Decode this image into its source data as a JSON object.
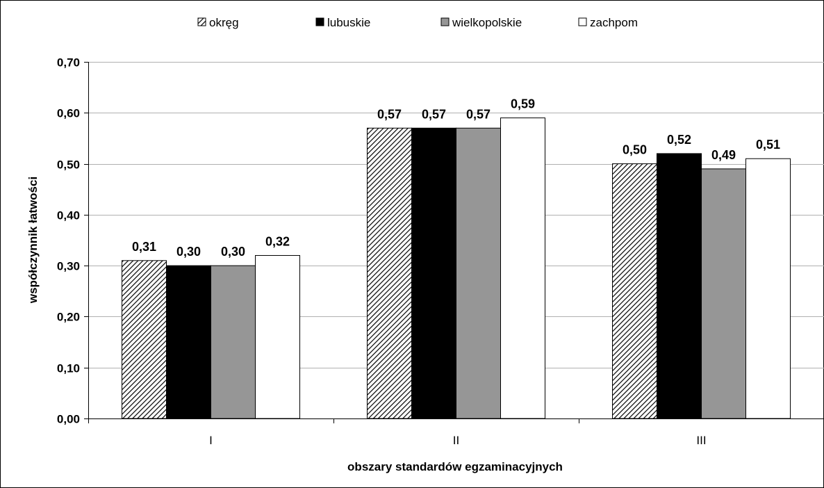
{
  "chart_data": {
    "type": "bar",
    "categories": [
      "I",
      "II",
      "III"
    ],
    "series": [
      {
        "name": "okręg",
        "values": [
          0.31,
          0.57,
          0.5
        ],
        "labels": [
          "0,31",
          "0,57",
          "0,50"
        ],
        "fill": "hatched",
        "color": "#ffffff"
      },
      {
        "name": "lubuskie",
        "values": [
          0.3,
          0.57,
          0.52
        ],
        "labels": [
          "0,30",
          "0,57",
          "0,52"
        ],
        "fill": "solid",
        "color": "#000000"
      },
      {
        "name": "wielkopolskie",
        "values": [
          0.3,
          0.57,
          0.49
        ],
        "labels": [
          "0,30",
          "0,57",
          "0,49"
        ],
        "fill": "solid",
        "color": "#969696"
      },
      {
        "name": "zachpom",
        "values": [
          0.32,
          0.59,
          0.51
        ],
        "labels": [
          "0,32",
          "0,59",
          "0,51"
        ],
        "fill": "solid",
        "color": "#ffffff"
      }
    ],
    "xlabel": "obszary standardów egzaminacyjnych",
    "ylabel": "współczynnik łatwości",
    "ylim": [
      0,
      0.7
    ],
    "yticks": [
      {
        "value": 0.0,
        "label": "0,00"
      },
      {
        "value": 0.1,
        "label": "0,10"
      },
      {
        "value": 0.2,
        "label": "0,20"
      },
      {
        "value": 0.3,
        "label": "0,30"
      },
      {
        "value": 0.4,
        "label": "0,40"
      },
      {
        "value": 0.5,
        "label": "0,50"
      },
      {
        "value": 0.6,
        "label": "0,60"
      },
      {
        "value": 0.7,
        "label": "0,70"
      }
    ],
    "grid": true,
    "legend": "top"
  }
}
